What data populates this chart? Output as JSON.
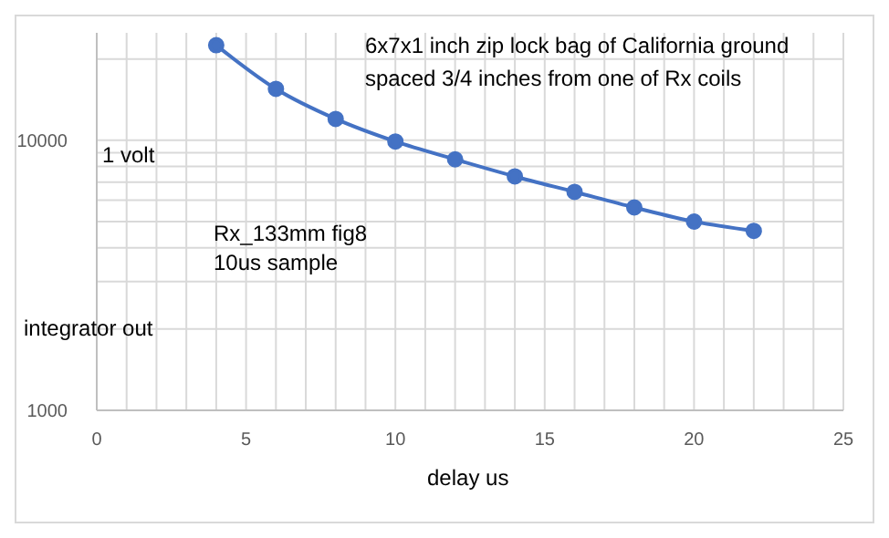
{
  "chart_data": {
    "type": "line",
    "xlabel": "delay us",
    "ylabel": "integrator out",
    "annotations": [
      "6x7x1 inch zip lock bag of California ground",
      "spaced 3/4 inches from one of Rx coils",
      "Rx_133mm fig8",
      "10us sample",
      "1 volt"
    ],
    "x": [
      4,
      6,
      8,
      10,
      12,
      14,
      16,
      18,
      20,
      22
    ],
    "series": [
      {
        "color": "#4472c4",
        "values": [
          22500,
          15500,
          12000,
          9900,
          8500,
          7350,
          6440,
          5640,
          5000,
          4620
        ]
      }
    ],
    "xlim": [
      0,
      25
    ],
    "xticks": [
      0,
      5,
      10,
      15,
      20,
      25
    ],
    "ylim": [
      1000,
      25000
    ],
    "yticks": [
      1000,
      10000
    ],
    "log": "y",
    "grid": true,
    "marker": "circle"
  }
}
